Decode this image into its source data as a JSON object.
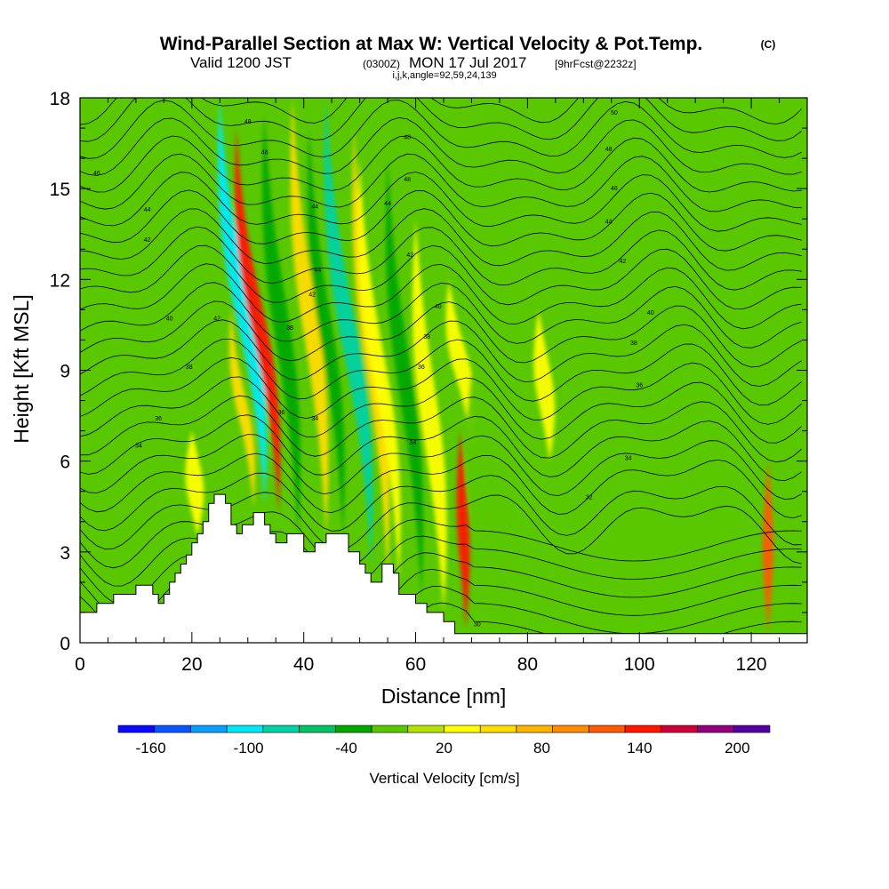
{
  "header": {
    "title_main": "Wind-Parallel Section at Max W: Vertical Velocity & Pot.Temp.",
    "title_mark": "(C)",
    "valid_prefix": "Valid 1200 JST",
    "valid_utc": "(0300Z)",
    "valid_date": "MON 17 Jul 2017",
    "forecast": "[9hrFcst@2232z]",
    "params": "i,j,k,angle=92,59,24,139"
  },
  "colorbar": {
    "label": "Vertical Velocity [cm/s]",
    "min": -180,
    "max": 220,
    "tick_values": [
      -160,
      -100,
      -40,
      20,
      80,
      140,
      200
    ],
    "tick_labels": [
      "-160",
      "-100",
      "-40",
      "20",
      "80",
      "140",
      "200"
    ],
    "colors": [
      "#0a0aff",
      "#0a55ff",
      "#0a9eff",
      "#00e8f5",
      "#00d2a5",
      "#00c264",
      "#00a800",
      "#5ac800",
      "#b4e100",
      "#ffff00",
      "#ffdc00",
      "#ffb400",
      "#ff8c00",
      "#ff5a00",
      "#ff1400",
      "#cd0037",
      "#91007d",
      "#5500a0"
    ]
  },
  "chart_data": {
    "type": "contour",
    "xlabel": "Distance [nm]",
    "ylabel": "Height [Kft MSL]",
    "xlim": [
      0,
      130
    ],
    "ylim": [
      0,
      18
    ],
    "x_ticks": [
      0,
      20,
      40,
      60,
      80,
      100,
      120
    ],
    "y_ticks": [
      0,
      3,
      6,
      9,
      12,
      15,
      18
    ],
    "terrain": {
      "distance_nm": [
        0,
        3,
        3,
        6,
        6,
        10,
        10,
        13,
        13,
        14,
        14,
        15,
        15,
        16,
        16,
        17,
        17,
        18,
        18,
        19,
        19,
        20,
        20,
        21,
        21,
        22,
        22,
        23,
        23,
        24,
        24,
        26,
        26,
        27,
        27,
        28,
        28,
        29,
        29,
        31,
        31,
        33,
        33,
        34,
        34,
        35,
        35,
        37,
        37,
        40,
        40,
        42,
        42,
        44,
        44,
        48,
        48,
        50,
        50,
        51,
        51,
        52,
        52,
        54,
        54,
        56,
        56,
        57,
        57,
        60,
        60,
        62,
        62,
        65,
        65,
        67,
        67,
        69,
        69,
        130
      ],
      "height_kft": [
        1.0,
        1.0,
        1.3,
        1.3,
        1.6,
        1.6,
        1.9,
        1.9,
        1.6,
        1.6,
        1.3,
        1.3,
        1.6,
        1.6,
        2.0,
        2.0,
        2.3,
        2.3,
        2.6,
        2.6,
        2.9,
        2.9,
        3.3,
        3.3,
        3.6,
        3.6,
        4.0,
        4.0,
        4.6,
        4.6,
        4.9,
        4.9,
        4.6,
        4.6,
        3.9,
        3.9,
        3.6,
        3.6,
        3.9,
        3.9,
        4.3,
        4.3,
        3.9,
        3.9,
        3.6,
        3.6,
        3.3,
        3.3,
        3.6,
        3.6,
        3.0,
        3.0,
        3.3,
        3.3,
        3.6,
        3.6,
        3.0,
        3.0,
        2.6,
        2.6,
        2.3,
        2.3,
        2.0,
        2.0,
        2.6,
        2.6,
        2.3,
        2.3,
        1.6,
        1.6,
        1.3,
        1.3,
        1.0,
        1.0,
        0.7,
        0.7,
        0.3,
        0.3,
        0.3,
        0.3
      ]
    },
    "vertical_velocity_features": [
      {
        "x_bottom": 33,
        "x_top": 25,
        "h_bottom": 4.5,
        "h_top": 18,
        "half_width_nm": 1.6,
        "value_cm_s": -110
      },
      {
        "x_bottom": 35.5,
        "x_top": 28,
        "h_bottom": 4.3,
        "h_top": 17,
        "half_width_nm": 1.3,
        "value_cm_s": 140
      },
      {
        "x_bottom": 31,
        "x_top": 27,
        "h_bottom": 4.5,
        "h_top": 11,
        "half_width_nm": 1.0,
        "value_cm_s": 60
      },
      {
        "x_bottom": 39,
        "x_top": 33,
        "h_bottom": 3.5,
        "h_top": 17.5,
        "half_width_nm": 1.4,
        "value_cm_s": -40
      },
      {
        "x_bottom": 44,
        "x_top": 38,
        "h_bottom": 3.5,
        "h_top": 18,
        "half_width_nm": 1.4,
        "value_cm_s": 60
      },
      {
        "x_bottom": 47,
        "x_top": 41,
        "h_bottom": 3.5,
        "h_top": 17,
        "half_width_nm": 1.2,
        "value_cm_s": -30
      },
      {
        "x_bottom": 52,
        "x_top": 44,
        "h_bottom": 2.5,
        "h_top": 18,
        "half_width_nm": 1.5,
        "value_cm_s": -90
      },
      {
        "x_bottom": 55,
        "x_top": 49,
        "h_bottom": 2.0,
        "h_top": 17,
        "half_width_nm": 1.2,
        "value_cm_s": 50
      },
      {
        "x_bottom": 57,
        "x_top": 50,
        "h_bottom": 2.0,
        "h_top": 16,
        "half_width_nm": 1.3,
        "value_cm_s": 40
      },
      {
        "x_bottom": 61,
        "x_top": 55,
        "h_bottom": 1.5,
        "h_top": 16,
        "half_width_nm": 1.3,
        "value_cm_s": -40
      },
      {
        "x_bottom": 65,
        "x_top": 60,
        "h_bottom": 1.0,
        "h_top": 14,
        "half_width_nm": 1.6,
        "value_cm_s": 40
      },
      {
        "x_bottom": 69,
        "x_top": 68,
        "h_bottom": 0.5,
        "h_top": 7,
        "half_width_nm": 1.0,
        "value_cm_s": 140
      },
      {
        "x_bottom": 70,
        "x_top": 66,
        "h_bottom": 6.5,
        "h_top": 12,
        "half_width_nm": 1.5,
        "value_cm_s": 40
      },
      {
        "x_bottom": 73,
        "x_top": 70,
        "h_bottom": 1.0,
        "h_top": 9,
        "half_width_nm": 1.8,
        "value_cm_s": -20
      },
      {
        "x_bottom": 84,
        "x_top": 82,
        "h_bottom": 6.0,
        "h_top": 11,
        "half_width_nm": 1.5,
        "value_cm_s": 40
      },
      {
        "x_bottom": 79,
        "x_top": 78,
        "h_bottom": 1.0,
        "h_top": 8,
        "half_width_nm": 2.0,
        "value_cm_s": -20
      },
      {
        "x_bottom": 123,
        "x_top": 123,
        "h_bottom": 0.3,
        "h_top": 6,
        "half_width_nm": 0.9,
        "value_cm_s": 120
      },
      {
        "x_bottom": 21,
        "x_top": 20,
        "h_bottom": 3.5,
        "h_top": 7,
        "half_width_nm": 1.5,
        "value_cm_s": 40
      },
      {
        "x_bottom": 13,
        "x_top": 16,
        "h_bottom": 7,
        "h_top": 16,
        "half_width_nm": 1.5,
        "value_cm_s": -20
      },
      {
        "x_bottom": 5,
        "x_top": 8,
        "h_bottom": 5,
        "h_top": 14,
        "half_width_nm": 1.8,
        "value_cm_s": -20
      },
      {
        "x_bottom": 100,
        "x_top": 104,
        "h_bottom": 3,
        "h_top": 16,
        "half_width_nm": 1.5,
        "value_cm_s": -20
      },
      {
        "x_bottom": 112,
        "x_top": 115,
        "h_bottom": 3,
        "h_top": 15,
        "half_width_nm": 1.6,
        "value_cm_s": -20
      }
    ],
    "isentrope_labels": [
      {
        "x": 30,
        "h": 17.2,
        "text": "48"
      },
      {
        "x": 33,
        "h": 16.2,
        "text": "48"
      },
      {
        "x": 58.5,
        "h": 16.7,
        "text": "48"
      },
      {
        "x": 58.5,
        "h": 15.3,
        "text": "48"
      },
      {
        "x": 95.5,
        "h": 17.5,
        "text": "50"
      },
      {
        "x": 94.5,
        "h": 16.3,
        "text": "48"
      },
      {
        "x": 95.5,
        "h": 15.0,
        "text": "46"
      },
      {
        "x": 94.5,
        "h": 13.9,
        "text": "44"
      },
      {
        "x": 97,
        "h": 12.6,
        "text": "42"
      },
      {
        "x": 102,
        "h": 10.9,
        "text": "40"
      },
      {
        "x": 99,
        "h": 9.9,
        "text": "38"
      },
      {
        "x": 100,
        "h": 8.5,
        "text": "36"
      },
      {
        "x": 98,
        "h": 6.1,
        "text": "34"
      },
      {
        "x": 91,
        "h": 4.8,
        "text": "32"
      },
      {
        "x": 71,
        "h": 0.6,
        "text": "30"
      },
      {
        "x": 3,
        "h": 15.5,
        "text": "46"
      },
      {
        "x": 12,
        "h": 14.3,
        "text": "44"
      },
      {
        "x": 12,
        "h": 13.3,
        "text": "42"
      },
      {
        "x": 16,
        "h": 10.7,
        "text": "40"
      },
      {
        "x": 19.5,
        "h": 9.1,
        "text": "38"
      },
      {
        "x": 14,
        "h": 7.4,
        "text": "36"
      },
      {
        "x": 10.5,
        "h": 6.5,
        "text": "34"
      },
      {
        "x": 24.5,
        "h": 10.7,
        "text": "42"
      },
      {
        "x": 37.5,
        "h": 10.4,
        "text": "38"
      },
      {
        "x": 36,
        "h": 7.6,
        "text": "36"
      },
      {
        "x": 42,
        "h": 14.4,
        "text": "44"
      },
      {
        "x": 42.5,
        "h": 12.3,
        "text": "44"
      },
      {
        "x": 41.5,
        "h": 11.5,
        "text": "42"
      },
      {
        "x": 42,
        "h": 7.4,
        "text": "34"
      },
      {
        "x": 55,
        "h": 14.5,
        "text": "44"
      },
      {
        "x": 59,
        "h": 12.8,
        "text": "42"
      },
      {
        "x": 64,
        "h": 11.1,
        "text": "40"
      },
      {
        "x": 62,
        "h": 10.1,
        "text": "38"
      },
      {
        "x": 61,
        "h": 9.1,
        "text": "36"
      },
      {
        "x": 59.5,
        "h": 6.6,
        "text": "34"
      }
    ]
  }
}
